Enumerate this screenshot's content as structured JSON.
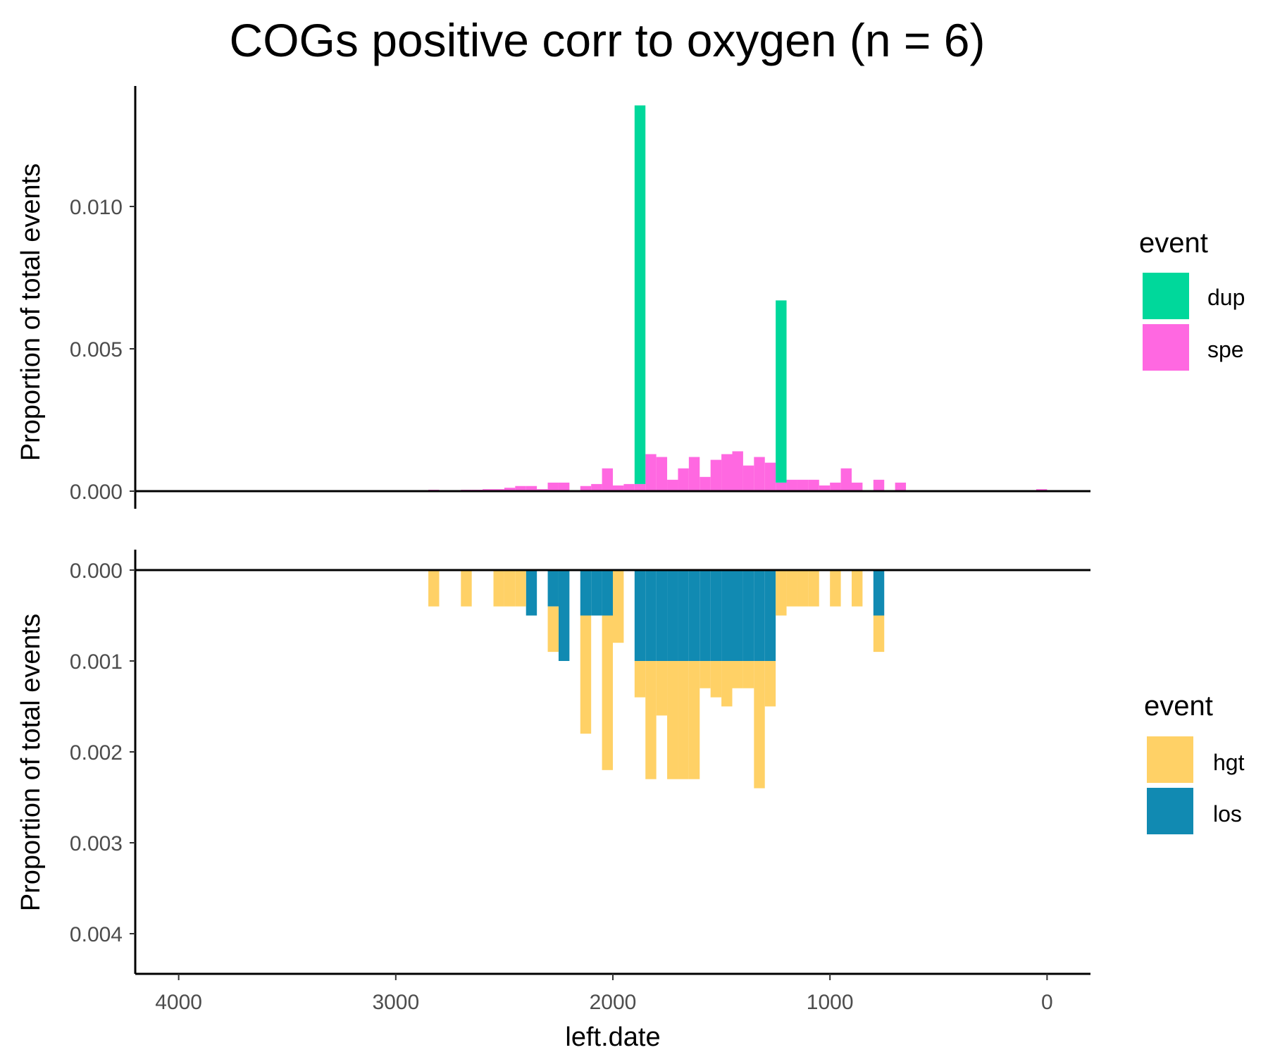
{
  "chart_data": {
    "type": "bar",
    "title": "COGs positive corr to oxygen (n = 6)",
    "xlabel": "left.date",
    "x_axis": {
      "reversed": true,
      "range": [
        4200,
        -200
      ],
      "ticks": [
        4000,
        3000,
        2000,
        1000,
        0
      ],
      "tick_labels": [
        "4000",
        "3000",
        "2000",
        "1000",
        "0"
      ]
    },
    "bin_width": 50,
    "panels": [
      {
        "ylabel": "Proportion of total events",
        "ylim": [
          0,
          0.0145
        ],
        "y_ticks": [
          0,
          0.005,
          0.01
        ],
        "y_tick_labels": [
          "0.000",
          "0.005",
          "0.010"
        ],
        "stacked": true,
        "legend": {
          "title": "event",
          "entries": [
            "dup",
            "spe"
          ]
        },
        "series": [
          {
            "name": "spe",
            "color": "#FF68E1",
            "points": [
              [
                2825,
                5e-05
              ],
              [
                2675,
                5e-05
              ],
              [
                2625,
                5e-05
              ],
              [
                2575,
                7e-05
              ],
              [
                2525,
                7e-05
              ],
              [
                2475,
                0.00012
              ],
              [
                2425,
                0.00018
              ],
              [
                2375,
                0.00018
              ],
              [
                2325,
                7e-05
              ],
              [
                2275,
                0.0003
              ],
              [
                2225,
                0.0003
              ],
              [
                2125,
                0.00018
              ],
              [
                2075,
                0.00025
              ],
              [
                2025,
                0.0008
              ],
              [
                1975,
                0.0002
              ],
              [
                1925,
                0.00025
              ],
              [
                1875,
                0.00025
              ],
              [
                1825,
                0.0013
              ],
              [
                1775,
                0.0012
              ],
              [
                1725,
                0.0004
              ],
              [
                1675,
                0.0008
              ],
              [
                1625,
                0.0012
              ],
              [
                1575,
                0.0005
              ],
              [
                1525,
                0.0011
              ],
              [
                1475,
                0.0013
              ],
              [
                1425,
                0.0014
              ],
              [
                1375,
                0.0009
              ],
              [
                1325,
                0.0012
              ],
              [
                1275,
                0.001
              ],
              [
                1225,
                0.0003
              ],
              [
                1175,
                0.0004
              ],
              [
                1125,
                0.0004
              ],
              [
                1075,
                0.0004
              ],
              [
                1025,
                0.0002
              ],
              [
                975,
                0.0003
              ],
              [
                925,
                0.0008
              ],
              [
                875,
                0.0003
              ],
              [
                775,
                0.0004
              ],
              [
                675,
                0.0003
              ],
              [
                25,
                7e-05
              ]
            ]
          },
          {
            "name": "dup",
            "color": "#00D89B",
            "points": [
              [
                1875,
                0.0133
              ],
              [
                1225,
                0.0064
              ]
            ]
          }
        ]
      },
      {
        "ylabel": "Proportion of total events",
        "ylim": [
          0,
          0.00445
        ],
        "reversed": true,
        "y_ticks": [
          0,
          0.001,
          0.002,
          0.003,
          0.004
        ],
        "y_tick_labels": [
          "0.000",
          "0.001",
          "0.002",
          "0.003",
          "0.004"
        ],
        "stacked": true,
        "legend": {
          "title": "event",
          "entries": [
            "hgt",
            "los"
          ]
        },
        "series": [
          {
            "name": "los",
            "color": "#118AB2",
            "points": [
              [
                2375,
                0.0005
              ],
              [
                2275,
                0.0004
              ],
              [
                2225,
                0.001
              ],
              [
                2125,
                0.0005
              ],
              [
                2075,
                0.0005
              ],
              [
                2025,
                0.0005
              ],
              [
                1875,
                0.001
              ],
              [
                1825,
                0.001
              ],
              [
                1775,
                0.001
              ],
              [
                1725,
                0.001
              ],
              [
                1675,
                0.001
              ],
              [
                1625,
                0.001
              ],
              [
                1575,
                0.001
              ],
              [
                1525,
                0.001
              ],
              [
                1475,
                0.001
              ],
              [
                1425,
                0.001
              ],
              [
                1375,
                0.001
              ],
              [
                1325,
                0.001
              ],
              [
                1275,
                0.001
              ],
              [
                775,
                0.0005
              ]
            ]
          },
          {
            "name": "hgt",
            "color": "#FFD166",
            "points": [
              [
                2825,
                0.0004
              ],
              [
                2675,
                0.0004
              ],
              [
                2525,
                0.0004
              ],
              [
                2475,
                0.0004
              ],
              [
                2425,
                0.0004
              ],
              [
                2275,
                0.0005
              ],
              [
                2125,
                0.0013
              ],
              [
                2025,
                0.0017
              ],
              [
                1975,
                0.0008
              ],
              [
                1875,
                0.0004
              ],
              [
                1825,
                0.0013
              ],
              [
                1775,
                0.0006
              ],
              [
                1725,
                0.0013
              ],
              [
                1675,
                0.0013
              ],
              [
                1625,
                0.0013
              ],
              [
                1575,
                0.0003
              ],
              [
                1525,
                0.0004
              ],
              [
                1475,
                0.0005
              ],
              [
                1425,
                0.0003
              ],
              [
                1375,
                0.0003
              ],
              [
                1325,
                0.0014
              ],
              [
                1275,
                0.0005
              ],
              [
                1225,
                0.0005
              ],
              [
                1175,
                0.0004
              ],
              [
                1125,
                0.0004
              ],
              [
                1075,
                0.0004
              ],
              [
                975,
                0.0004
              ],
              [
                875,
                0.0004
              ],
              [
                775,
                0.0004
              ]
            ]
          }
        ]
      }
    ]
  }
}
